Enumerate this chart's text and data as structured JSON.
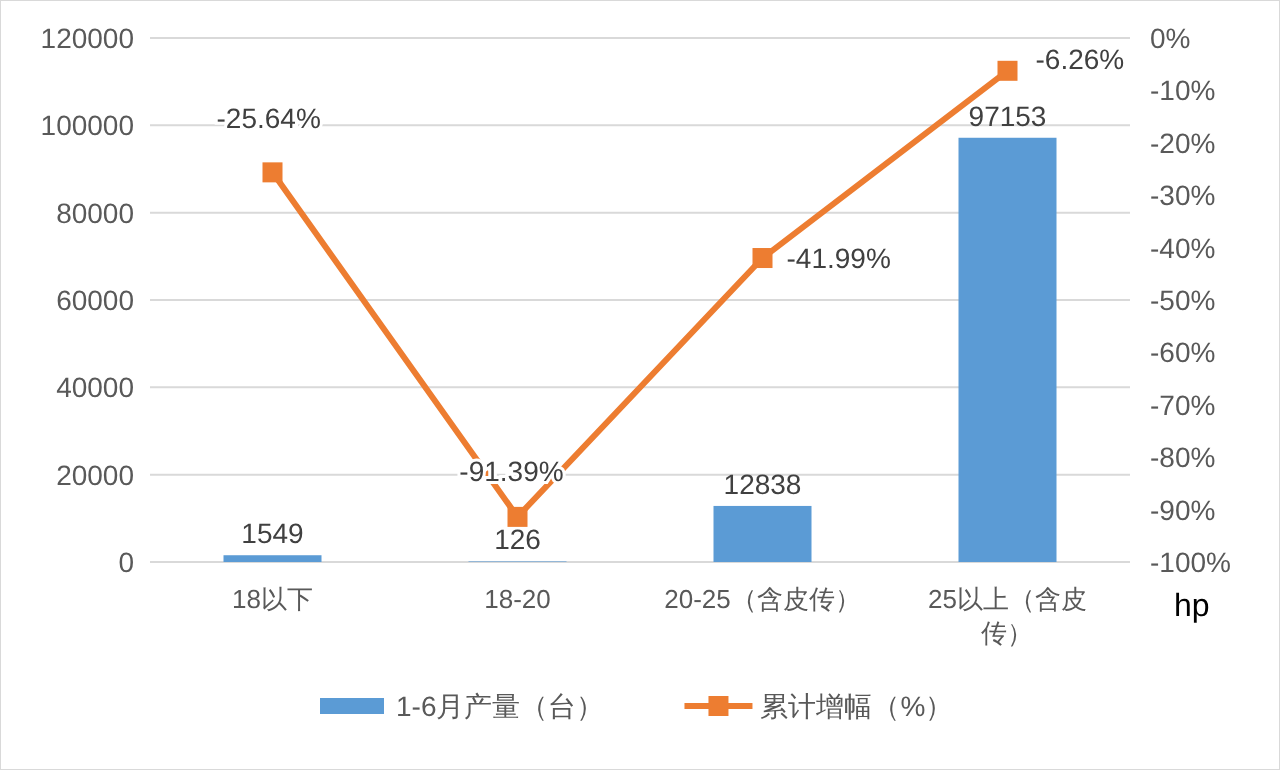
{
  "chart_data": {
    "type": "bar",
    "categories": [
      "18以下",
      "18-20",
      "20-25（含皮传）",
      "25以上（含皮传）"
    ],
    "xlabel": "hp",
    "series": [
      {
        "name": "1-6月产量（台）",
        "color": "#5b9bd5",
        "values": [
          1549,
          126,
          12838,
          97153
        ],
        "value_labels": [
          "1549",
          "126",
          "12838",
          "97153"
        ]
      },
      {
        "name": "累计增幅（%）",
        "type": "line",
        "axis": "y2",
        "color": "#ed7d31",
        "marker": "square",
        "values": [
          -25.64,
          -91.39,
          -41.99,
          -6.26
        ],
        "value_labels": [
          "-25.64%",
          "-91.39%",
          "-41.99%",
          "-6.26%"
        ]
      }
    ],
    "ylim": [
      0,
      120000
    ],
    "yticks": [
      0,
      20000,
      40000,
      60000,
      80000,
      100000,
      120000
    ],
    "y2lim": [
      -100,
      0
    ],
    "y2ticks": [
      {
        "value": 0,
        "label": "0%"
      },
      {
        "value": -10,
        "label": "-10%"
      },
      {
        "value": -20,
        "label": "-20%"
      },
      {
        "value": -30,
        "label": "-30%"
      },
      {
        "value": -40,
        "label": "-40%"
      },
      {
        "value": -50,
        "label": "-50%"
      },
      {
        "value": -60,
        "label": "-60%"
      },
      {
        "value": -70,
        "label": "-70%"
      },
      {
        "value": -80,
        "label": "-80%"
      },
      {
        "value": -90,
        "label": "-90%"
      },
      {
        "value": -100,
        "label": "-100%"
      }
    ],
    "grid": "y",
    "legend": "bottom"
  }
}
